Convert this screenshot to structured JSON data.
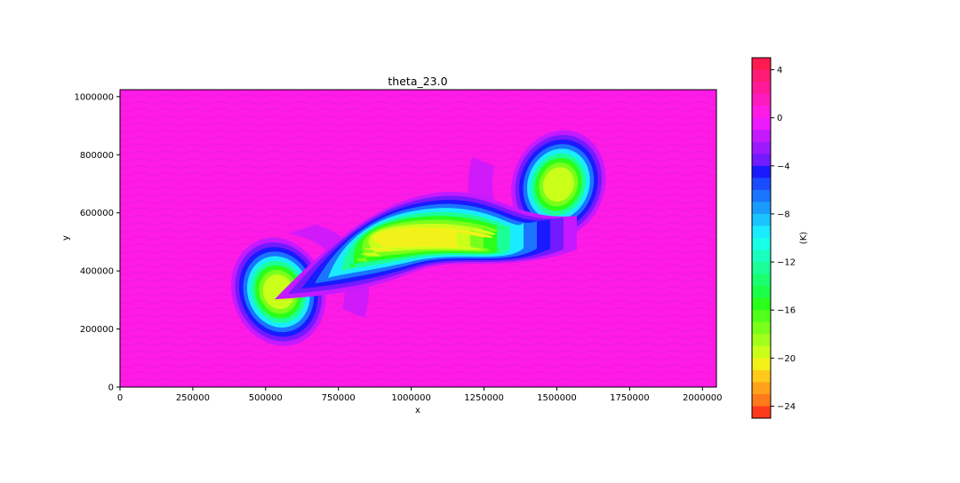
{
  "chart_data": {
    "type": "heatmap",
    "title": "theta_23.0",
    "xlabel": "x",
    "ylabel": "y",
    "xlim": [
      0,
      2048000
    ],
    "ylim": [
      0,
      1024000
    ],
    "x_ticks": [
      0,
      250000,
      500000,
      750000,
      1000000,
      1250000,
      1500000,
      1750000,
      2000000
    ],
    "x_tick_labels": [
      "0",
      "250000",
      "500000",
      "750000",
      "1000000",
      "1250000",
      "1500000",
      "1750000",
      "2000000"
    ],
    "y_ticks": [
      0,
      200000,
      400000,
      600000,
      800000,
      1000000
    ],
    "y_tick_labels": [
      "0",
      "200000",
      "400000",
      "600000",
      "800000",
      "1000000"
    ],
    "grid": false,
    "colorbar": {
      "label": "(K)",
      "min": -25,
      "max": 5,
      "ticks": [
        4,
        0,
        -4,
        -8,
        -12,
        -16,
        -20,
        -24
      ],
      "tick_labels": [
        "4",
        "0",
        "−4",
        "−8",
        "−12",
        "−16",
        "−20",
        "−24"
      ],
      "levels": [
        {
          "from": 4,
          "to": 5,
          "color": "#ff1a4f"
        },
        {
          "from": 3,
          "to": 4,
          "color": "#ff1a73"
        },
        {
          "from": 2,
          "to": 3,
          "color": "#ff1a99"
        },
        {
          "from": 1,
          "to": 2,
          "color": "#ff1ac0"
        },
        {
          "from": 0,
          "to": 1,
          "color": "#ff1ae6"
        },
        {
          "from": -1,
          "to": 0,
          "color": "#ee1aff"
        },
        {
          "from": -2,
          "to": -1,
          "color": "#c51aff"
        },
        {
          "from": -3,
          "to": -2,
          "color": "#9d1aff"
        },
        {
          "from": -4,
          "to": -3,
          "color": "#741aff"
        },
        {
          "from": -5,
          "to": -4,
          "color": "#1a1aff"
        },
        {
          "from": -6,
          "to": -5,
          "color": "#1a4cff"
        },
        {
          "from": -7,
          "to": -6,
          "color": "#1a74ff"
        },
        {
          "from": -8,
          "to": -7,
          "color": "#1a9cff"
        },
        {
          "from": -9,
          "to": -8,
          "color": "#1ac4ff"
        },
        {
          "from": -10,
          "to": -9,
          "color": "#1aecff"
        },
        {
          "from": -11,
          "to": -10,
          "color": "#1affe8"
        },
        {
          "from": -12,
          "to": -11,
          "color": "#1affc0"
        },
        {
          "from": -13,
          "to": -12,
          "color": "#1aff98"
        },
        {
          "from": -14,
          "to": -13,
          "color": "#1aff70"
        },
        {
          "from": -15,
          "to": -14,
          "color": "#1aff48"
        },
        {
          "from": -16,
          "to": -15,
          "color": "#2aff1a"
        },
        {
          "from": -17,
          "to": -16,
          "color": "#52ff1a"
        },
        {
          "from": -18,
          "to": -17,
          "color": "#7aff1a"
        },
        {
          "from": -19,
          "to": -18,
          "color": "#a2ff1a"
        },
        {
          "from": -20,
          "to": -19,
          "color": "#caff1a"
        },
        {
          "from": -21,
          "to": -20,
          "color": "#f2f21a"
        },
        {
          "from": -22,
          "to": -21,
          "color": "#ffca1a"
        },
        {
          "from": -23,
          "to": -22,
          "color": "#ffa21a"
        },
        {
          "from": -24,
          "to": -23,
          "color": "#ff7a1a"
        },
        {
          "from": -25,
          "to": -24,
          "color": "#ff3a1a"
        }
      ]
    },
    "background_value": 0.5,
    "features": [
      {
        "name": "left-vortex",
        "x": 550000,
        "y": 330000,
        "min_value": -20
      },
      {
        "name": "right-vortex",
        "x": 1500000,
        "y": 700000,
        "min_value": -20
      },
      {
        "name": "central-filament",
        "x": 1050000,
        "y": 510000,
        "min_value": -21
      }
    ]
  }
}
